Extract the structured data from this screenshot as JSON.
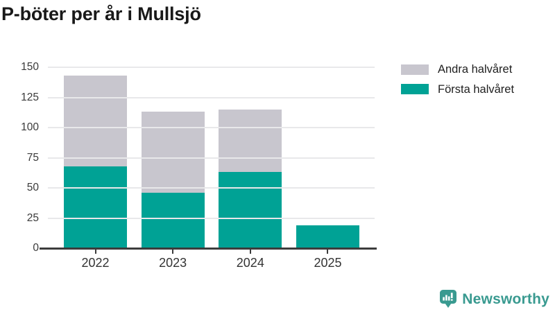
{
  "chart_data": {
    "type": "bar",
    "stacked": true,
    "title": "P-böter per år i Mullsjö",
    "categories": [
      "2022",
      "2023",
      "2024",
      "2025"
    ],
    "series": [
      {
        "name": "Första halvåret",
        "color": "#00a295",
        "values": [
          68,
          46,
          63,
          19
        ]
      },
      {
        "name": "Andra halvåret",
        "color": "#c8c6ce",
        "values": [
          75,
          67,
          52,
          0
        ]
      }
    ],
    "totals": [
      143,
      113,
      115,
      19
    ],
    "xlabel": "",
    "ylabel": "",
    "ylim": [
      0,
      150
    ],
    "yticks": [
      0,
      25,
      50,
      75,
      100,
      125,
      150
    ],
    "grid": true,
    "legend": {
      "position": "top-right",
      "items": [
        {
          "label": "Andra halvåret",
          "color": "#c8c6ce"
        },
        {
          "label": "Första halvåret",
          "color": "#00a295"
        }
      ]
    },
    "colors": {
      "axis": "#3c3c3c",
      "gridline": "#e8e8ea",
      "tick_label": "#3a3a3a",
      "title": "#191919"
    }
  },
  "branding": {
    "label": "Newsworthy",
    "color": "#399a90",
    "icon": "newsworthy-bar-chart-bubble-icon"
  }
}
